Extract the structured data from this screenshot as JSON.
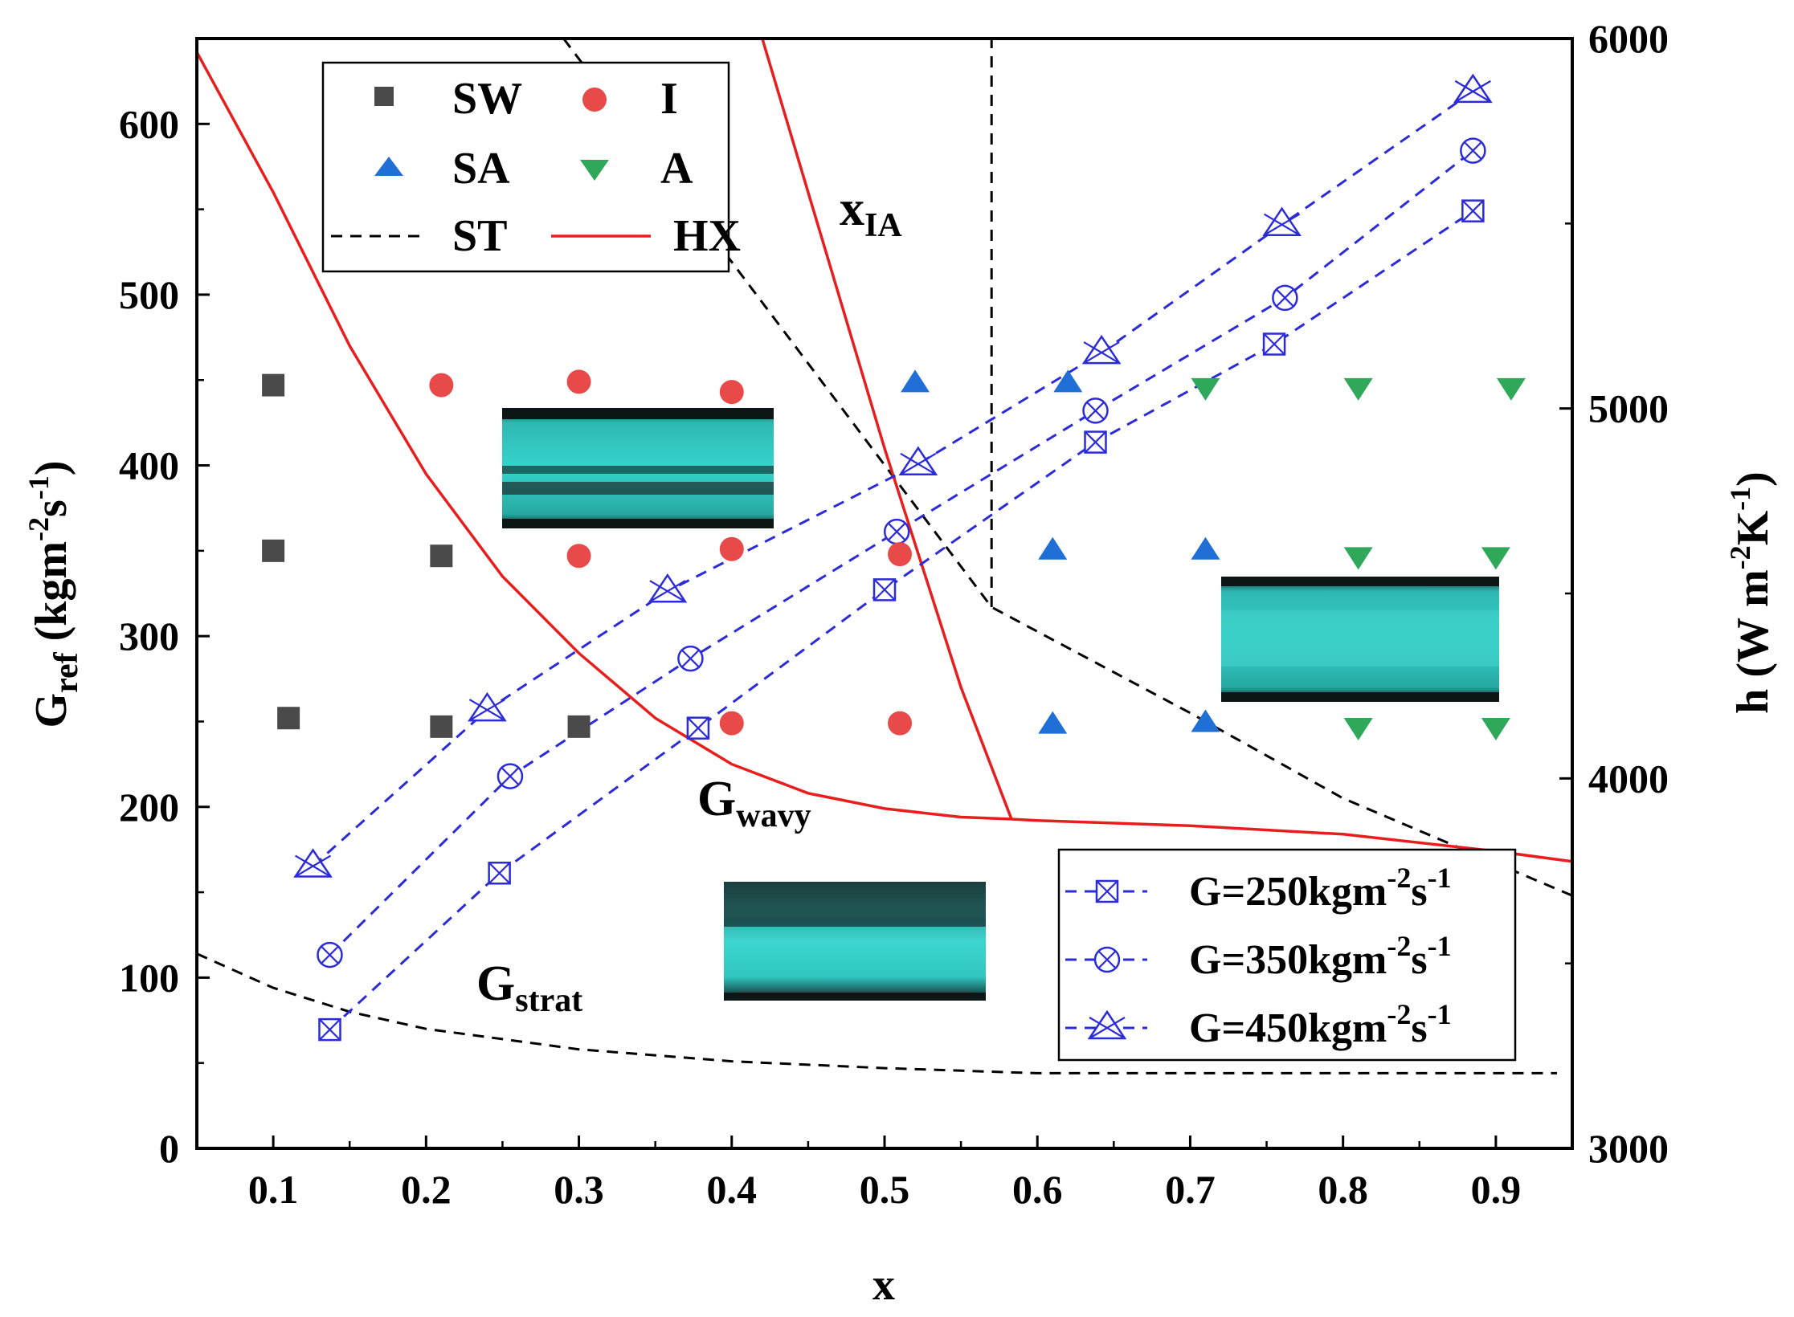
{
  "chart_data": {
    "type": "scatter",
    "title": "",
    "xlabel": "x",
    "ylabel": "G",
    "ylabel_sub": "ref",
    "ylabel_unit": " (kgm-2s-1)",
    "y2label": "h (W m-2K-1)",
    "xlim": [
      0.05,
      0.95
    ],
    "ylim": [
      0,
      650
    ],
    "y2lim": [
      3000,
      6000
    ],
    "x_ticks": [
      0.1,
      0.2,
      0.3,
      0.4,
      0.5,
      0.6,
      0.7,
      0.8,
      0.9
    ],
    "x_tick_labels": [
      "0.1",
      "0.2",
      "0.3",
      "0.4",
      "0.5",
      "0.6",
      "0.7",
      "0.8",
      "0.9"
    ],
    "y_ticks": [
      0,
      100,
      200,
      300,
      400,
      500,
      600
    ],
    "y_tick_labels": [
      "0",
      "100",
      "200",
      "300",
      "400",
      "500",
      "600"
    ],
    "y2_ticks": [
      3000,
      4000,
      5000,
      6000
    ],
    "y2_tick_labels": [
      "3000",
      "4000",
      "5000",
      "6000"
    ],
    "pattern_series": [
      {
        "name": "SW",
        "marker": "square",
        "color": "#4a4a4a",
        "points": [
          [
            0.1,
            447
          ],
          [
            0.1,
            350
          ],
          [
            0.21,
            347
          ],
          [
            0.11,
            252
          ],
          [
            0.21,
            247
          ],
          [
            0.3,
            247
          ]
        ]
      },
      {
        "name": "I",
        "marker": "circle",
        "color": "#e84a4a",
        "points": [
          [
            0.21,
            447
          ],
          [
            0.3,
            449
          ],
          [
            0.4,
            443
          ],
          [
            0.3,
            347
          ],
          [
            0.4,
            351
          ],
          [
            0.51,
            348
          ],
          [
            0.4,
            249
          ],
          [
            0.51,
            249
          ]
        ]
      },
      {
        "name": "SA",
        "marker": "triangle-up",
        "color": "#1f6fd6",
        "points": [
          [
            0.52,
            449
          ],
          [
            0.62,
            449
          ],
          [
            0.61,
            351
          ],
          [
            0.71,
            351
          ],
          [
            0.61,
            249
          ],
          [
            0.71,
            250
          ]
        ]
      },
      {
        "name": "A",
        "marker": "triangle-down",
        "color": "#2fa85a",
        "points": [
          [
            0.71,
            445
          ],
          [
            0.81,
            445
          ],
          [
            0.91,
            445
          ],
          [
            0.81,
            346
          ],
          [
            0.9,
            346
          ],
          [
            0.81,
            246
          ],
          [
            0.9,
            246
          ]
        ]
      }
    ],
    "boundary_lines": [
      {
        "name": "ST",
        "style": "dashed",
        "color": "#000000",
        "segments": [
          [
            [
              0.05,
              114
            ],
            [
              0.1,
              94
            ],
            [
              0.15,
              80
            ],
            [
              0.2,
              70
            ],
            [
              0.3,
              58
            ],
            [
              0.4,
              51
            ],
            [
              0.5,
              47
            ],
            [
              0.6,
              44
            ],
            [
              0.7,
              44
            ],
            [
              0.94,
              44
            ]
          ],
          [
            [
              0.29,
              650
            ],
            [
              0.57,
              317
            ],
            [
              0.7,
              255
            ],
            [
              0.8,
              205
            ],
            [
              0.95,
              148
            ]
          ],
          [
            [
              0.57,
              317
            ],
            [
              0.57,
              650
            ]
          ]
        ]
      },
      {
        "name": "HX",
        "style": "solid",
        "color": "#e81e1e",
        "segments": [
          [
            [
              0.05,
              642
            ],
            [
              0.1,
              560
            ],
            [
              0.15,
              470
            ],
            [
              0.2,
              395
            ],
            [
              0.25,
              335
            ],
            [
              0.3,
              290
            ],
            [
              0.35,
              252
            ],
            [
              0.4,
              225
            ],
            [
              0.45,
              208
            ],
            [
              0.5,
              199
            ],
            [
              0.55,
              194
            ],
            [
              0.58,
              193
            ],
            [
              0.6,
              192
            ],
            [
              0.7,
              189
            ],
            [
              0.8,
              184
            ],
            [
              0.9,
              174
            ],
            [
              0.95,
              168
            ]
          ],
          [
            [
              0.42,
              650
            ],
            [
              0.5,
              410
            ],
            [
              0.55,
              270
            ],
            [
              0.583,
              193
            ]
          ]
        ]
      }
    ],
    "h_series": [
      {
        "name": "G=250kgm-2s-1",
        "marker": "boxed-x",
        "color": "#2b2bd9",
        "points": [
          [
            0.137,
            3321
          ],
          [
            0.248,
            3744
          ],
          [
            0.378,
            4136
          ],
          [
            0.5,
            4510
          ],
          [
            0.638,
            4909
          ],
          [
            0.755,
            5174
          ],
          [
            0.885,
            5534
          ]
        ]
      },
      {
        "name": "G=350kgm-2s-1",
        "marker": "circled-x",
        "color": "#2b2bd9",
        "points": [
          [
            0.137,
            3523
          ],
          [
            0.255,
            4006
          ],
          [
            0.373,
            4324
          ],
          [
            0.508,
            4667
          ],
          [
            0.638,
            4994
          ],
          [
            0.762,
            5299
          ],
          [
            0.885,
            5697
          ]
        ]
      },
      {
        "name": "G=450kgm-2s-1",
        "marker": "triangle-x",
        "color": "#2b2bd9",
        "points": [
          [
            0.126,
            3763
          ],
          [
            0.24,
            4185
          ],
          [
            0.358,
            4506
          ],
          [
            0.522,
            4850
          ],
          [
            0.642,
            5151
          ],
          [
            0.76,
            5497
          ],
          [
            0.885,
            5857
          ]
        ]
      }
    ],
    "annotations": [
      {
        "label": "x",
        "sub": "IA",
        "x": 0.485,
        "y": 545
      },
      {
        "label": "G",
        "sub": "wavy",
        "x": 0.395,
        "y": 205
      },
      {
        "label": "G",
        "sub": "strat",
        "x": 0.235,
        "y": 88
      }
    ],
    "legend_patterns": {
      "sw": "SW",
      "i": "I",
      "sa": "SA",
      "a": "A",
      "st": "ST",
      "hx": "HX"
    },
    "legend_h": {
      "g250": "G=250kgm-2s-1",
      "g350": "G=350kgm-2s-1",
      "g450": "G=450kgm-2s-1"
    }
  }
}
